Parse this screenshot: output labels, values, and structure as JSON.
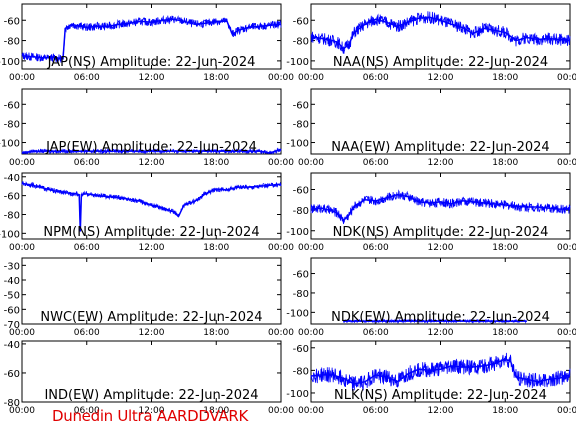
{
  "footer": "Dunedin Ultra AARDDVARK",
  "colors": {
    "trace": "#0000ff",
    "footer": "#e00000",
    "axes": "#000000",
    "background": "#ffffff"
  },
  "chart_data": [
    {
      "type": "line",
      "title": "JAP(NS) Amplitude: 22-Jun-2024",
      "xticks": [
        "00:00",
        "06:00",
        "12:00",
        "18:00",
        "00:00"
      ],
      "yticks": [
        -100,
        -80,
        -60
      ],
      "ylim": [
        -108,
        -44
      ],
      "x": [
        0,
        1,
        2,
        3,
        3.8,
        4,
        4.6,
        5,
        6,
        7,
        8,
        9,
        10,
        11,
        12,
        12.5,
        13,
        14,
        15,
        16,
        17,
        18,
        19,
        19.5,
        20,
        21,
        22,
        23,
        24
      ],
      "series": [
        {
          "values": [
            -95,
            -96,
            -97,
            -97,
            -98,
            -68,
            -64,
            -65,
            -67,
            -66,
            -66,
            -64,
            -63,
            -61,
            -62,
            -61,
            -60,
            -59,
            -61,
            -64,
            -63,
            -61,
            -61,
            -74,
            -70,
            -67,
            -66,
            -65,
            -64
          ]
        }
      ],
      "band": 8
    },
    {
      "type": "line",
      "title": "NAA(NS) Amplitude: 22-Jun-2024",
      "xticks": [
        "00:00",
        "06:00",
        "12:00",
        "18:00",
        "00:00"
      ],
      "yticks": [
        -100,
        -80,
        -60
      ],
      "ylim": [
        -108,
        -44
      ],
      "x": [
        0,
        1,
        2,
        2.5,
        3,
        3.5,
        4,
        5,
        6,
        7,
        8,
        9,
        10,
        11,
        12,
        13,
        14,
        15,
        16,
        17,
        18,
        19,
        20,
        21,
        22,
        23,
        24
      ],
      "series": [
        {
          "values": [
            -76,
            -78,
            -80,
            -82,
            -88,
            -84,
            -72,
            -64,
            -59,
            -62,
            -66,
            -62,
            -58,
            -57,
            -60,
            -64,
            -67,
            -73,
            -68,
            -70,
            -72,
            -80,
            -77,
            -79,
            -78,
            -79,
            -80
          ]
        }
      ],
      "band": 12
    },
    {
      "type": "line",
      "title": "JAP(EW) Amplitude: 22-Jun-2024",
      "xticks": [
        "00:00",
        "06:00",
        "12:00",
        "18:00",
        "00:00"
      ],
      "yticks": [
        -100,
        -80,
        -60
      ],
      "ylim": [
        -112,
        -44
      ],
      "x": [
        0,
        1,
        6,
        12,
        18,
        22,
        23,
        24
      ],
      "series": [
        {
          "values": [
            -111,
            -109,
            -109,
            -109,
            -109,
            -109,
            -111,
            -107
          ]
        }
      ],
      "band": 4
    },
    {
      "type": "line",
      "title": "NAA(EW) Amplitude: 22-Jun-2024",
      "xticks": [
        "00:00",
        "06:00",
        "12:00",
        "18:00",
        "00:00"
      ],
      "yticks": [
        -100,
        -80,
        -60
      ],
      "ylim": [
        -112,
        -44
      ],
      "x": [],
      "series": [
        {
          "values": []
        }
      ],
      "band": 0
    },
    {
      "type": "line",
      "title": "NPM(NS) Amplitude: 22-Jun-2024",
      "xticks": [
        "00:00",
        "06:00",
        "12:00",
        "18:00",
        "00:00"
      ],
      "yticks": [
        -100,
        -80,
        -60,
        -40
      ],
      "ylim": [
        -106,
        -36
      ],
      "x": [
        0,
        1,
        2,
        3,
        4,
        5,
        5.3,
        5.4,
        5.5,
        6,
        7,
        8,
        9,
        10,
        11,
        12,
        13,
        14,
        14.5,
        15,
        16,
        17,
        18,
        19,
        20,
        21,
        22,
        23,
        24
      ],
      "series": [
        {
          "values": [
            -47,
            -49,
            -52,
            -55,
            -57,
            -58,
            -59,
            -98,
            -59,
            -58,
            -60,
            -61,
            -62,
            -64,
            -66,
            -70,
            -73,
            -77,
            -82,
            -70,
            -66,
            -58,
            -53,
            -54,
            -51,
            -51,
            -50,
            -49,
            -48
          ]
        }
      ],
      "band": 5
    },
    {
      "type": "line",
      "title": "NDK(NS) Amplitude: 22-Jun-2024",
      "xticks": [
        "00:00",
        "06:00",
        "12:00",
        "18:00",
        "00:00"
      ],
      "yticks": [
        -100,
        -80,
        -60
      ],
      "ylim": [
        -108,
        -44
      ],
      "x": [
        0,
        1,
        2,
        2.5,
        3,
        3.5,
        4,
        5,
        6,
        7,
        8,
        9,
        10,
        11,
        12,
        13,
        14,
        15,
        16,
        17,
        18,
        19,
        20,
        21,
        22,
        23,
        24
      ],
      "series": [
        {
          "values": [
            -79,
            -78,
            -81,
            -83,
            -90,
            -85,
            -76,
            -70,
            -71,
            -68,
            -65,
            -67,
            -72,
            -73,
            -72,
            -74,
            -71,
            -72,
            -73,
            -74,
            -75,
            -76,
            -77,
            -77,
            -78,
            -79,
            -79
          ]
        }
      ],
      "band": 9
    },
    {
      "type": "line",
      "title": "NWC(EW) Amplitude: 22-Jun-2024",
      "xticks": [
        "00:00",
        "06:00",
        "12:00",
        "18:00",
        "00:00"
      ],
      "yticks": [
        -70,
        -60,
        -50,
        -40,
        -30
      ],
      "ylim": [
        -70,
        -25
      ],
      "x": [],
      "series": [
        {
          "values": []
        }
      ],
      "band": 0
    },
    {
      "type": "line",
      "title": "NDK(EW) Amplitude: 22-Jun-2024",
      "xticks": [
        "00:00",
        "06:00",
        "12:00",
        "18:00",
        "00:00"
      ],
      "yticks": [
        -100,
        -80,
        -60
      ],
      "ylim": [
        -112,
        -44
      ],
      "x": [
        3,
        6,
        12,
        18,
        20
      ],
      "series": [
        {
          "values": [
            -109,
            -109,
            -109,
            -109,
            -109
          ]
        }
      ],
      "band": 3
    },
    {
      "type": "line",
      "title": "IND(EW) Amplitude: 22-Jun-2024",
      "xticks": [
        "00:00",
        "06:00",
        "12:00",
        "18:00",
        "00:00"
      ],
      "yticks": [
        -80,
        -60,
        -40
      ],
      "ylim": [
        -80,
        -38
      ],
      "x": [],
      "series": [
        {
          "values": []
        }
      ],
      "band": 0
    },
    {
      "type": "line",
      "title": "NLK(NS) Amplitude: 22-Jun-2024",
      "xticks": [
        "00:00",
        "06:00",
        "12:00",
        "18:00",
        "00:00"
      ],
      "yticks": [
        -100,
        -80,
        -60
      ],
      "ylim": [
        -108,
        -54
      ],
      "x": [
        0,
        1,
        2,
        3,
        4,
        5,
        6,
        7,
        8,
        9,
        10,
        11,
        12,
        13,
        14,
        15,
        16,
        17,
        18,
        18.5,
        19,
        20,
        21,
        22,
        23,
        24
      ],
      "series": [
        {
          "values": [
            -85,
            -84,
            -84,
            -87,
            -92,
            -90,
            -84,
            -86,
            -90,
            -83,
            -79,
            -80,
            -79,
            -76,
            -77,
            -77,
            -76,
            -74,
            -70,
            -72,
            -86,
            -88,
            -90,
            -88,
            -87,
            -84
          ]
        }
      ],
      "band": 14
    }
  ]
}
